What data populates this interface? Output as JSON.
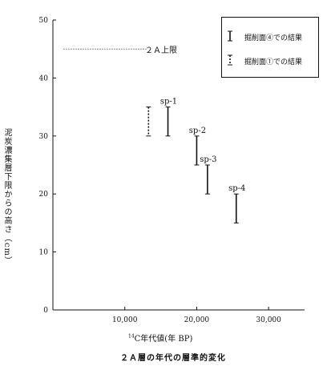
{
  "chart_data": {
    "type": "scatter",
    "title": "",
    "xlabel_prefix_sup": "14",
    "xlabel": "C年代値(年 BP)",
    "ylabel": "泥炭濃集層下限からの高さ（cm）",
    "xlim": [
      0,
      35000
    ],
    "ylim": [
      0,
      50
    ],
    "x_ticks": [
      0,
      10000,
      20000,
      30000
    ],
    "x_tick_labels": [
      "",
      "10,000",
      "20,000",
      "30,000"
    ],
    "y_ticks": [
      0,
      10,
      20,
      30,
      40,
      50
    ],
    "y_tick_labels": [
      "0",
      "10",
      "20",
      "30",
      "40",
      "50"
    ],
    "grid": false,
    "legend_position": "top-right",
    "reference_line": {
      "label": "２Ａ上限",
      "y": 45,
      "x_from": 1500,
      "x_to": 13000,
      "style": "dotted"
    },
    "series": [
      {
        "name": "掘削面④での結果",
        "style": "solid",
        "points": [
          {
            "label": "sp-1",
            "x": 16000,
            "y_low": 30,
            "y_high": 35
          },
          {
            "label": "sp-2",
            "x": 20000,
            "y_low": 25,
            "y_high": 30
          },
          {
            "label": "sp-3",
            "x": 21500,
            "y_low": 20,
            "y_high": 25
          },
          {
            "label": "sp-4",
            "x": 25500,
            "y_low": 15,
            "y_high": 20
          }
        ]
      },
      {
        "name": "掘削面①での結果",
        "style": "dashed",
        "points": [
          {
            "label": "",
            "x": 13300,
            "y_low": 30,
            "y_high": 35
          }
        ]
      }
    ]
  },
  "caption": "２Ａ層の年代の層準的変化"
}
